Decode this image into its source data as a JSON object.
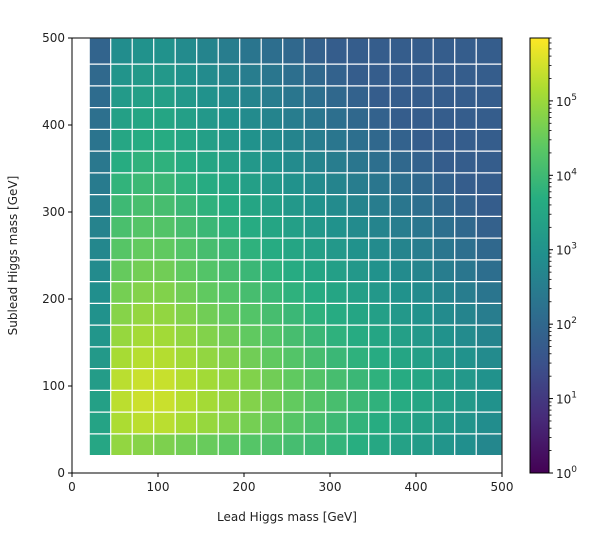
{
  "chart_data": {
    "type": "heatmap",
    "xlabel": "Lead Higgs mass [GeV]",
    "ylabel": "Sublead Higgs mass [GeV]",
    "xlim": [
      0,
      500
    ],
    "ylim": [
      0,
      500
    ],
    "x_ticks": [
      "0",
      "100",
      "200",
      "300",
      "400",
      "500"
    ],
    "y_ticks": [
      "0",
      "100",
      "200",
      "300",
      "400",
      "500"
    ],
    "x_bin_edges": [
      20,
      45,
      70,
      95,
      120,
      145,
      170,
      195,
      220,
      245,
      270,
      295,
      320,
      345,
      370,
      395,
      420,
      445,
      470,
      500
    ],
    "y_bin_edges": [
      20,
      45,
      70,
      95,
      120,
      145,
      170,
      195,
      220,
      245,
      270,
      295,
      320,
      345,
      370,
      395,
      420,
      445,
      470,
      500
    ],
    "colorbar": {
      "scale": "log",
      "range": [
        1,
        700000
      ],
      "ticks": [
        {
          "value": 1,
          "base": "10",
          "exp": "0"
        },
        {
          "value": 10,
          "base": "10",
          "exp": "1"
        },
        {
          "value": 100,
          "base": "10",
          "exp": "2"
        },
        {
          "value": 1000,
          "base": "10",
          "exp": "3"
        },
        {
          "value": 10000,
          "base": "10",
          "exp": "4"
        },
        {
          "value": 100000,
          "base": "10",
          "exp": "5"
        }
      ],
      "colormap": "viridis"
    },
    "grid": true,
    "grid_color": "#ffffff"
  }
}
